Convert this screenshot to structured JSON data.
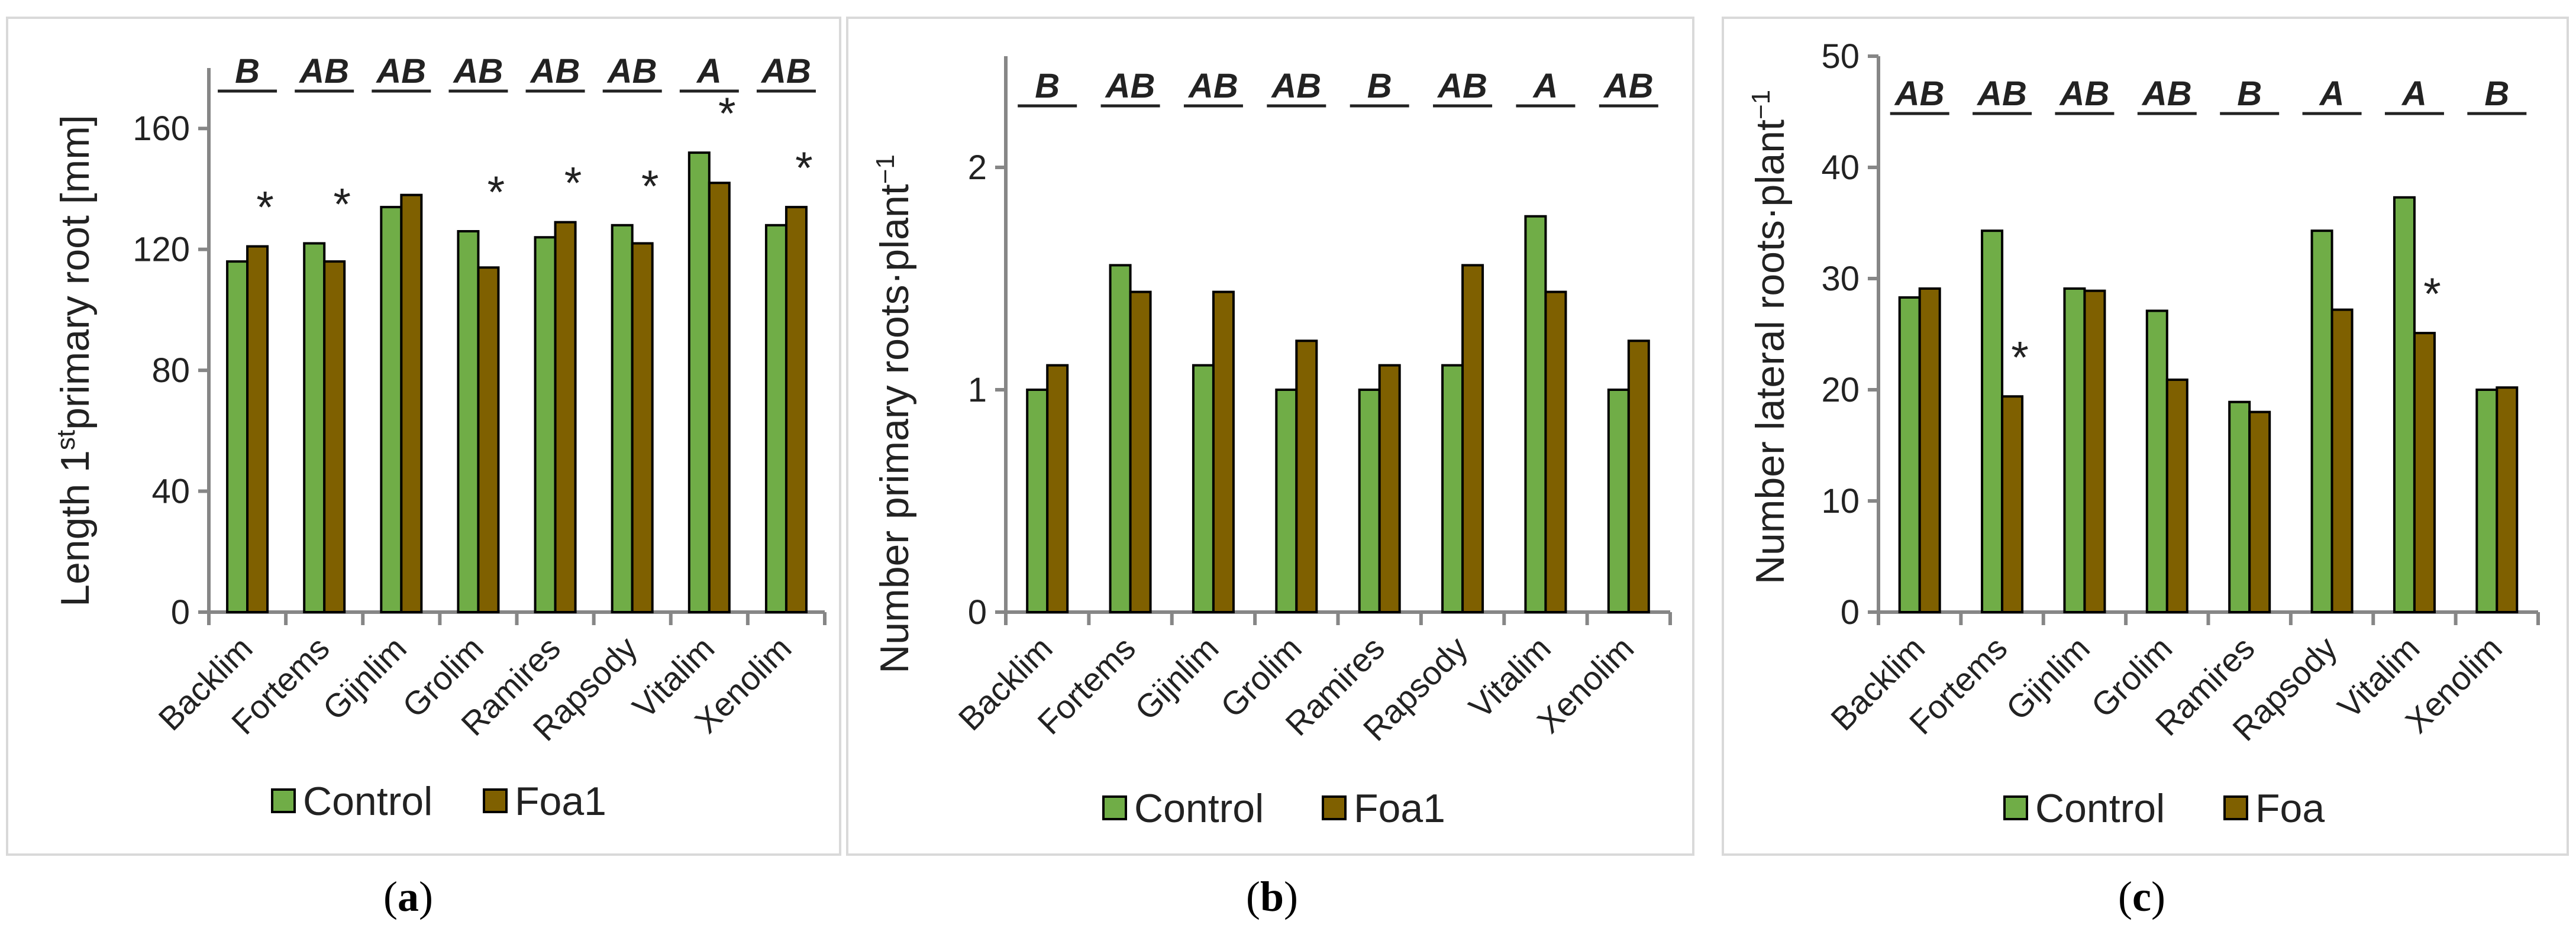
{
  "colors": {
    "control": "#70ad47",
    "treatment": "#7f6000",
    "axis": "#868686",
    "text": "#222222"
  },
  "chart_data": [
    {
      "type": "bar",
      "panel": "a",
      "caption": {
        "open": "(",
        "letter": "a",
        "close": ")"
      },
      "ylabel": {
        "main": "Length 1",
        "sup": "st",
        "rest": "primary root [mm]"
      },
      "ylim": [
        0,
        180
      ],
      "yticks": [
        0,
        40,
        80,
        120,
        160
      ],
      "categories": [
        "Backlim",
        "Fortems",
        "Gijnlim",
        "Grolim",
        "Ramires",
        "Rapsody",
        "Vitalim",
        "Xenolim"
      ],
      "series": [
        {
          "name": "Control",
          "values": [
            116,
            122,
            134,
            126,
            124,
            128,
            152,
            128
          ]
        },
        {
          "name": "Foa1",
          "values": [
            121,
            116,
            138,
            114,
            129,
            122,
            142,
            134
          ]
        }
      ],
      "significance_letters": [
        "B",
        "AB",
        "AB",
        "AB",
        "AB",
        "AB",
        "A",
        "AB"
      ],
      "stars": [
        {
          "category": "Backlim",
          "value": 121,
          "text": "*"
        },
        {
          "category": "Fortems",
          "value": 122,
          "text": "*"
        },
        {
          "category": "Grolim",
          "value": 126,
          "text": "*"
        },
        {
          "category": "Ramires",
          "value": 129,
          "text": "*"
        },
        {
          "category": "Rapsody",
          "value": 128,
          "text": "*"
        },
        {
          "category": "Vitalim",
          "value": 152,
          "text": "*"
        },
        {
          "category": "Xenolim",
          "value": 134,
          "text": "*"
        }
      ],
      "legend": [
        "Control",
        "Foa1"
      ]
    },
    {
      "type": "bar",
      "panel": "b",
      "caption": {
        "open": "(",
        "letter": "b",
        "close": ")"
      },
      "ylabel": {
        "main": "Number primary roots·plant",
        "sup": "−1",
        "rest": ""
      },
      "ylim": [
        0,
        2.5
      ],
      "yticks": [
        0,
        1,
        2
      ],
      "categories": [
        "Backlim",
        "Fortems",
        "Gijnlim",
        "Grolim",
        "Ramires",
        "Rapsody",
        "Vitalim",
        "Xenolim"
      ],
      "series": [
        {
          "name": "Control",
          "values": [
            1.0,
            1.56,
            1.11,
            1.0,
            1.0,
            1.11,
            1.78,
            1.0
          ]
        },
        {
          "name": "Foa1",
          "values": [
            1.11,
            1.44,
            1.44,
            1.22,
            1.11,
            1.56,
            1.44,
            1.22
          ]
        }
      ],
      "significance_letters": [
        "B",
        "AB",
        "AB",
        "AB",
        "B",
        "AB",
        "A",
        "AB"
      ],
      "stars": [],
      "legend": [
        "Control",
        "Foa1"
      ]
    },
    {
      "type": "bar",
      "panel": "c",
      "caption": {
        "open": "(",
        "letter": "c",
        "close": ")"
      },
      "ylabel": {
        "main": "Number lateral roots·plant",
        "sup": "−1",
        "rest": ""
      },
      "ylim": [
        0,
        50
      ],
      "yticks": [
        0,
        10,
        20,
        30,
        40,
        50
      ],
      "categories": [
        "Backlim",
        "Fortems",
        "Gijnlim",
        "Grolim",
        "Ramires",
        "Rapsody",
        "Vitalim",
        "Xenolim"
      ],
      "series": [
        {
          "name": "Control",
          "values": [
            28.3,
            34.3,
            29.1,
            27.1,
            18.9,
            34.3,
            37.3,
            20.0
          ]
        },
        {
          "name": "Foa",
          "values": [
            29.1,
            19.4,
            28.9,
            20.9,
            18.0,
            27.2,
            25.1,
            20.2
          ]
        }
      ],
      "significance_letters": [
        "AB",
        "AB",
        "AB",
        "AB",
        "B",
        "A",
        "A",
        "B"
      ],
      "stars": [
        {
          "category": "Fortems",
          "value": 19.4,
          "text": "*"
        },
        {
          "category": "Vitalim",
          "value": 25.1,
          "text": "*"
        }
      ],
      "legend": [
        "Control",
        "Foa"
      ]
    }
  ]
}
